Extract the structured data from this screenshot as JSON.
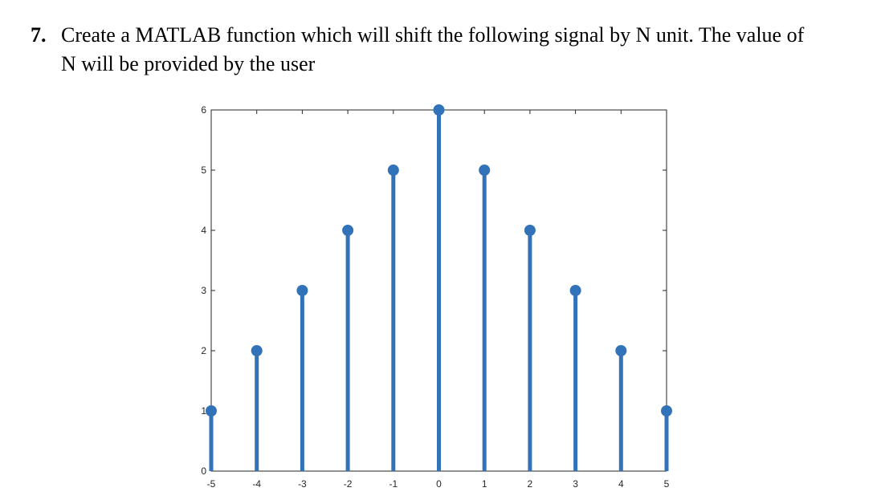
{
  "question": {
    "number": "7.",
    "line1": "Create a MATLAB function which will shift the following signal by N unit. The value of",
    "line2": "N will be provided by the user"
  },
  "chart_data": {
    "type": "stem",
    "x": [
      -5,
      -4,
      -3,
      -2,
      -1,
      0,
      1,
      2,
      3,
      4,
      5
    ],
    "y": [
      1,
      2,
      3,
      4,
      5,
      6,
      5,
      4,
      3,
      2,
      1
    ],
    "xlim": [
      -5,
      5
    ],
    "ylim": [
      0,
      6
    ],
    "xticks": [
      -5,
      -4,
      -3,
      -2,
      -1,
      0,
      1,
      2,
      3,
      4,
      5
    ],
    "yticks": [
      0,
      1,
      2,
      3,
      4,
      5,
      6
    ],
    "title": "",
    "xlabel": "",
    "ylabel": "",
    "grid": false,
    "color": "#3272b8"
  }
}
